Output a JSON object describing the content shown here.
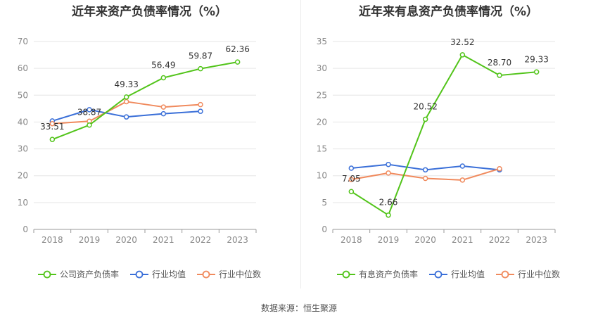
{
  "source": "数据来源：恒生聚源",
  "chart_data": [
    {
      "type": "line",
      "title": "近年来资产负债率情况（%）",
      "categories": [
        "2018",
        "2019",
        "2020",
        "2021",
        "2022",
        "2023"
      ],
      "ylim": [
        0,
        70
      ],
      "yticks": [
        0,
        10,
        20,
        30,
        40,
        50,
        60,
        70
      ],
      "grid": true,
      "legend_position": "bottom",
      "series": [
        {
          "name": "公司资产负债率",
          "color": "#52c41a",
          "values": [
            33.51,
            38.87,
            49.33,
            56.49,
            59.87,
            62.36
          ],
          "labels": [
            "33.51",
            "38.87",
            "49.33",
            "56.49",
            "59.87",
            "62.36"
          ]
        },
        {
          "name": "行业均值",
          "color": "#3a6fd8",
          "values": [
            40.4,
            44.6,
            41.9,
            43.1,
            44.0,
            null
          ]
        },
        {
          "name": "行业中位数",
          "color": "#f08a5d",
          "values": [
            39.4,
            40.3,
            47.6,
            45.6,
            46.5,
            null
          ]
        }
      ]
    },
    {
      "type": "line",
      "title": "近年来有息资产负债率情况（%）",
      "categories": [
        "2018",
        "2019",
        "2020",
        "2021",
        "2022",
        "2023"
      ],
      "ylim": [
        0,
        35
      ],
      "yticks": [
        0,
        5,
        10,
        15,
        20,
        25,
        30,
        35
      ],
      "grid": true,
      "legend_position": "bottom",
      "series": [
        {
          "name": "有息资产负债率",
          "color": "#52c41a",
          "values": [
            7.05,
            2.66,
            20.52,
            32.52,
            28.7,
            29.33
          ],
          "labels": [
            "7.05",
            "2.66",
            "20.52",
            "32.52",
            "28.70",
            "29.33"
          ]
        },
        {
          "name": "行业均值",
          "color": "#3a6fd8",
          "values": [
            11.4,
            12.1,
            11.1,
            11.8,
            11.1,
            null
          ]
        },
        {
          "name": "行业中位数",
          "color": "#f08a5d",
          "values": [
            9.3,
            10.5,
            9.5,
            9.2,
            11.3,
            null
          ]
        }
      ]
    }
  ]
}
